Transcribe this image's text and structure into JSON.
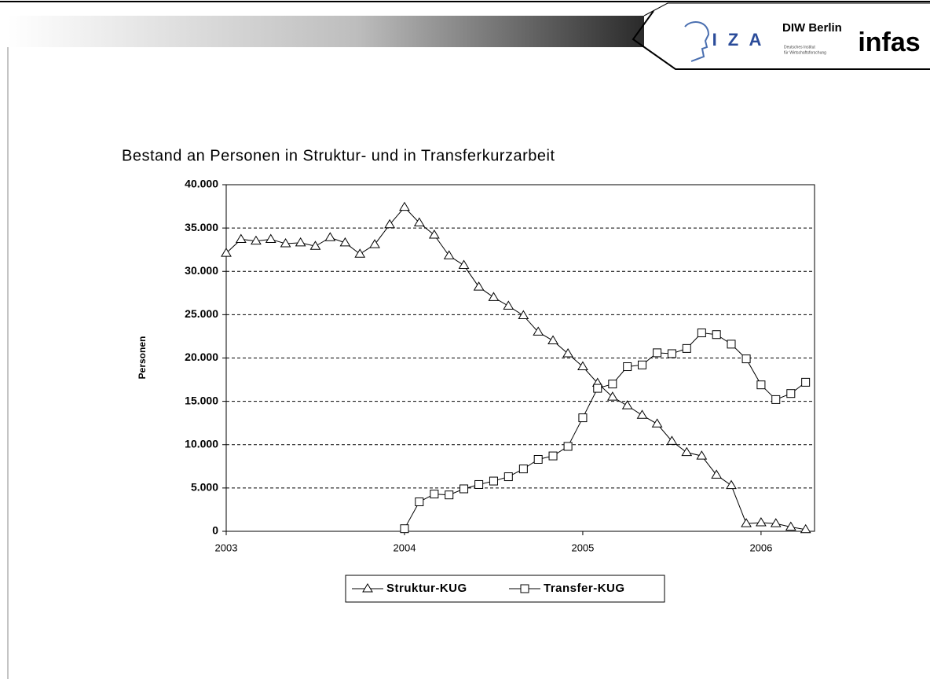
{
  "header": {
    "logo_iza": "I Z A",
    "logo_diw": "DIW Berlin",
    "logo_diw_sub1": "Deutsches Institut",
    "logo_diw_sub2": "für Wirtschaftsforschung",
    "logo_infas": "infas"
  },
  "chart_data": {
    "type": "line",
    "title": "Bestand an Personen in Struktur- und in Transferkurzarbeit",
    "y_label": "Personen",
    "x": [
      2003,
      2003.083,
      2003.167,
      2003.25,
      2003.333,
      2003.417,
      2003.5,
      2003.583,
      2003.667,
      2003.75,
      2003.833,
      2003.917,
      2004,
      2004.083,
      2004.167,
      2004.25,
      2004.333,
      2004.417,
      2004.5,
      2004.583,
      2004.667,
      2004.75,
      2004.833,
      2004.917,
      2005,
      2005.083,
      2005.167,
      2005.25,
      2005.333,
      2005.417,
      2005.5,
      2005.583,
      2005.667,
      2005.75,
      2005.833,
      2005.917,
      2006,
      2006.083,
      2006.167,
      2006.25
    ],
    "series": [
      {
        "name": "Struktur-KUG",
        "color": "#000000",
        "marker": "triangle",
        "values": [
          32100,
          33700,
          33500,
          33700,
          33200,
          33300,
          32900,
          33900,
          33300,
          32000,
          33100,
          35400,
          37400,
          35600,
          34200,
          31800,
          30700,
          28200,
          27000,
          26000,
          24900,
          23000,
          22000,
          20500,
          19000,
          17100,
          15500,
          14500,
          13400,
          12400,
          10400,
          9100,
          8700,
          6500,
          5300,
          900,
          1000,
          900,
          500,
          200
        ]
      },
      {
        "name": "Transfer-KUG",
        "color": "#000000",
        "marker": "square",
        "values": [
          null,
          null,
          null,
          null,
          null,
          null,
          null,
          null,
          null,
          null,
          null,
          null,
          300,
          3400,
          4300,
          4200,
          4900,
          5400,
          5800,
          6300,
          7200,
          8300,
          8700,
          9800,
          13100,
          16500,
          17000,
          19000,
          19200,
          20600,
          20500,
          21100,
          22900,
          22700,
          21600,
          19900,
          16900,
          15200,
          15900,
          17200
        ]
      }
    ],
    "xlim": [
      2003,
      2006.3
    ],
    "xticks": [
      2003,
      2004,
      2005,
      2006
    ],
    "ylim": [
      0,
      40000
    ],
    "yticks": [
      {
        "value": 0,
        "label": "0"
      },
      {
        "value": 5000,
        "label": "5.000"
      },
      {
        "value": 10000,
        "label": "10.000"
      },
      {
        "value": 15000,
        "label": "15.000"
      },
      {
        "value": 20000,
        "label": "20.000"
      },
      {
        "value": 25000,
        "label": "25.000"
      },
      {
        "value": 30000,
        "label": "30.000"
      },
      {
        "value": 35000,
        "label": "35.000"
      },
      {
        "value": 40000,
        "label": "40.000"
      }
    ],
    "grid": true,
    "legend": "bottom"
  }
}
